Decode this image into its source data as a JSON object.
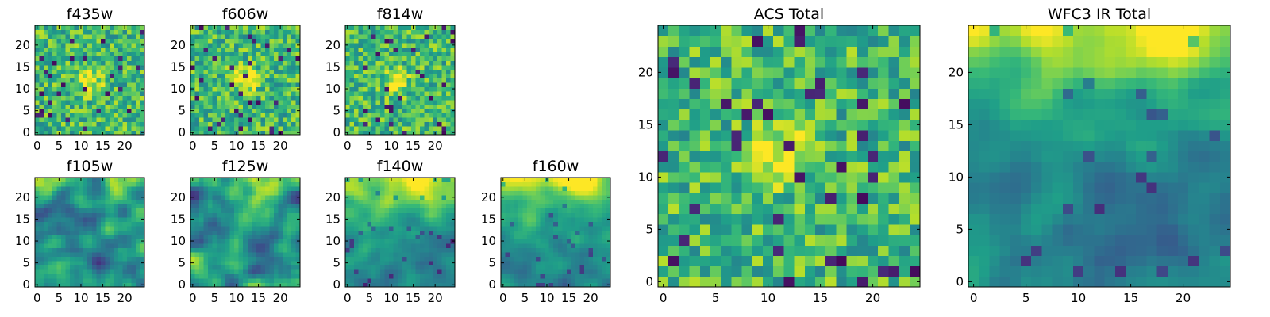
{
  "chart_data": [
    {
      "type": "heatmap",
      "title": "f435w",
      "xticks": [
        0,
        5,
        10,
        15,
        20
      ],
      "yticks": [
        0,
        5,
        10,
        15,
        20
      ],
      "xlim": [
        -0.5,
        24.5
      ],
      "ylim": [
        -0.5,
        24.5
      ],
      "grid": [
        25,
        25
      ],
      "colormap": "viridis",
      "pattern": "noise",
      "bright_spot": [
        12,
        12
      ]
    },
    {
      "type": "heatmap",
      "title": "f606w",
      "xticks": [
        0,
        5,
        10,
        15,
        20
      ],
      "yticks": [
        0,
        5,
        10,
        15,
        20
      ],
      "xlim": [
        -0.5,
        24.5
      ],
      "ylim": [
        -0.5,
        24.5
      ],
      "grid": [
        25,
        25
      ],
      "colormap": "viridis",
      "pattern": "noise",
      "bright_spot": [
        12,
        12
      ]
    },
    {
      "type": "heatmap",
      "title": "f814w",
      "xticks": [
        0,
        5,
        10,
        15,
        20
      ],
      "yticks": [
        0,
        5,
        10,
        15,
        20
      ],
      "xlim": [
        -0.5,
        24.5
      ],
      "ylim": [
        -0.5,
        24.5
      ],
      "grid": [
        25,
        25
      ],
      "colormap": "viridis",
      "pattern": "noise",
      "bright_spot": [
        11,
        12
      ]
    },
    {
      "type": "heatmap",
      "title": "f105w",
      "xticks": [
        0,
        5,
        10,
        15,
        20
      ],
      "yticks": [
        0,
        5,
        10,
        15,
        20
      ],
      "xlim": [
        -0.5,
        24.5
      ],
      "ylim": [
        -0.5,
        24.5
      ],
      "grid": [
        25,
        25
      ],
      "colormap": "viridis",
      "pattern": "smooth",
      "bright_spot": [
        18,
        23
      ]
    },
    {
      "type": "heatmap",
      "title": "f125w",
      "xticks": [
        0,
        5,
        10,
        15,
        20
      ],
      "yticks": [
        0,
        5,
        10,
        15,
        20
      ],
      "xlim": [
        -0.5,
        24.5
      ],
      "ylim": [
        -0.5,
        24.5
      ],
      "grid": [
        25,
        25
      ],
      "colormap": "viridis",
      "pattern": "smooth",
      "bright_spot": [
        18,
        22
      ]
    },
    {
      "type": "heatmap",
      "title": "f140w",
      "xticks": [
        0,
        5,
        10,
        15,
        20
      ],
      "yticks": [
        0,
        5,
        10,
        15,
        20
      ],
      "xlim": [
        -0.5,
        24.5
      ],
      "ylim": [
        -0.5,
        24.5
      ],
      "grid": [
        25,
        25
      ],
      "colormap": "viridis",
      "pattern": "gradient",
      "bright_spot": [
        17,
        23
      ]
    },
    {
      "type": "heatmap",
      "title": "f160w",
      "xticks": [
        0,
        5,
        10,
        15,
        20
      ],
      "yticks": [
        0,
        5,
        10,
        15,
        20
      ],
      "xlim": [
        -0.5,
        24.5
      ],
      "ylim": [
        -0.5,
        24.5
      ],
      "grid": [
        25,
        25
      ],
      "colormap": "viridis",
      "pattern": "gradient",
      "bright_spot": [
        18,
        23
      ]
    },
    {
      "type": "heatmap",
      "title": "ACS Total",
      "xticks": [
        0,
        5,
        10,
        15,
        20
      ],
      "yticks": [
        0,
        5,
        10,
        15,
        20
      ],
      "xlim": [
        -0.5,
        24.5
      ],
      "ylim": [
        -0.5,
        24.5
      ],
      "grid": [
        25,
        25
      ],
      "colormap": "viridis",
      "pattern": "noise",
      "bright_spot": [
        11,
        12
      ]
    },
    {
      "type": "heatmap",
      "title": "WFC3 IR Total",
      "xticks": [
        0,
        5,
        10,
        15,
        20
      ],
      "yticks": [
        0,
        5,
        10,
        15,
        20
      ],
      "xlim": [
        -0.5,
        24.5
      ],
      "ylim": [
        -0.5,
        24.5
      ],
      "grid": [
        25,
        25
      ],
      "colormap": "viridis",
      "pattern": "gradient",
      "bright_spot": [
        17,
        23
      ]
    }
  ]
}
